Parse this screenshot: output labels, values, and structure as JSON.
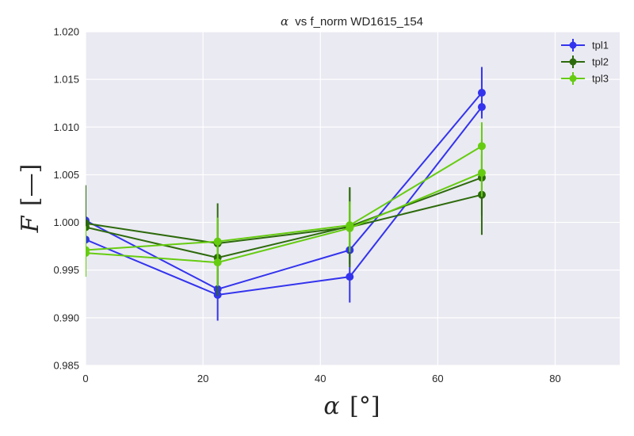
{
  "chart_data": {
    "type": "line",
    "title_symbol": "α",
    "title_text": "vs f_norm WD1615_154",
    "xlabel_symbol": "α",
    "xlabel_unit": "[°]",
    "ylabel_symbol": "F",
    "ylabel_unit": "[—]",
    "xlim": [
      0,
      91
    ],
    "ylim": [
      0.985,
      1.02
    ],
    "xticks": [
      0,
      20,
      40,
      60,
      80
    ],
    "yticks": [
      0.985,
      0.99,
      0.995,
      1.0,
      1.005,
      1.01,
      1.015,
      1.02
    ],
    "xtick_labels": [
      "0",
      "20",
      "40",
      "60",
      "80"
    ],
    "ytick_labels": [
      "0.985",
      "0.990",
      "0.995",
      "1.000",
      "1.005",
      "1.010",
      "1.015",
      "1.020"
    ],
    "grid": true,
    "legend_position": "top-right",
    "background_color": "#eaeaf2",
    "series": [
      {
        "name": "tpl1",
        "color": "#3333ee",
        "legend": true,
        "x": [
          0,
          22.5,
          45,
          67.5
        ],
        "y": [
          1.0002,
          0.993,
          0.9971,
          1.0136
        ],
        "err": [
          0.0007,
          0.0007,
          0.0007,
          0.0027
        ]
      },
      {
        "name": "tpl1",
        "color": "#3333ee",
        "legend": false,
        "x": [
          0,
          22.5,
          45,
          67.5
        ],
        "y": [
          0.9982,
          0.9924,
          0.9943,
          1.0121
        ],
        "err": [
          0.0007,
          0.0027,
          0.0027,
          0.0007
        ]
      },
      {
        "name": "tpl2",
        "color": "#2d6a0c",
        "legend": true,
        "x": [
          0,
          22.5,
          45,
          67.5
        ],
        "y": [
          0.9999,
          0.9978,
          0.9995,
          1.0029
        ],
        "err": [
          0.004,
          0.0042,
          0.0042,
          0.0042
        ]
      },
      {
        "name": "tpl2",
        "color": "#2d6a0c",
        "legend": false,
        "x": [
          0,
          22.5,
          45,
          67.5
        ],
        "y": [
          0.9995,
          0.9963,
          0.9996,
          1.0047
        ],
        "err": [
          0.004,
          0.004,
          0.004,
          0.004
        ]
      },
      {
        "name": "tpl3",
        "color": "#66cc11",
        "legend": true,
        "x": [
          0,
          22.5,
          45,
          67.5
        ],
        "y": [
          0.9968,
          0.9958,
          0.9994,
          1.0052
        ],
        "err": [
          0.0025,
          0.0025,
          0.0025,
          0.0025
        ]
      },
      {
        "name": "tpl3",
        "color": "#66cc11",
        "legend": false,
        "x": [
          0,
          22.5,
          45,
          67.5
        ],
        "y": [
          0.9971,
          0.998,
          0.9997,
          1.008
        ],
        "err": [
          0.0025,
          0.0025,
          0.0025,
          0.0025
        ]
      }
    ]
  }
}
